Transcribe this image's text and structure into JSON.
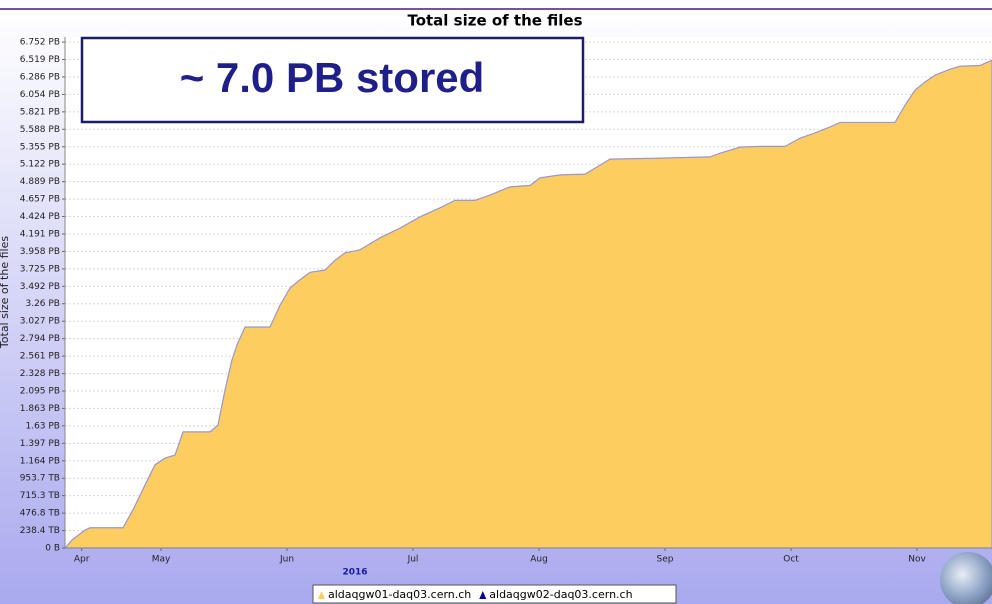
{
  "chart_data": {
    "type": "area",
    "title": "Total size of the files",
    "y_label": "Total size of the files",
    "x_label": "2016",
    "annotation": "~ 7.0 PB stored",
    "x": [
      4.738,
      4.794,
      4.897,
      4.937,
      5.198,
      5.278,
      5.373,
      5.452,
      5.532,
      5.611,
      5.675,
      5.889,
      5.952,
      6.008,
      6.063,
      6.103,
      6.167,
      6.365,
      6.444,
      6.524,
      6.603,
      6.683,
      6.802,
      6.881,
      6.96,
      7.079,
      7.238,
      7.397,
      7.556,
      7.714,
      7.833,
      7.992,
      8.111,
      8.27,
      8.429,
      8.508,
      8.667,
      8.865,
      8.984,
      9.063,
      9.381,
      9.857,
      9.937,
      10.095,
      10.254,
      10.452,
      10.571,
      10.69,
      10.81,
      10.889,
      11.048,
      11.325,
      11.405,
      11.484,
      11.563,
      11.643,
      11.762,
      11.841,
      12.0,
      12.095
    ],
    "series": [
      {
        "name": "aldaqgw01-daq03.cern.ch",
        "color": "#fecd5f",
        "line_color": "#9a96d2",
        "values": [
          0,
          0.107,
          0.24,
          0.27,
          0.27,
          0.51,
          0.84,
          1.11,
          1.2,
          1.24,
          1.55,
          1.55,
          1.64,
          2.11,
          2.51,
          2.71,
          2.95,
          2.95,
          3.24,
          3.47,
          3.58,
          3.68,
          3.71,
          3.84,
          3.94,
          3.98,
          4.14,
          4.27,
          4.42,
          4.54,
          4.64,
          4.64,
          4.71,
          4.82,
          4.84,
          4.94,
          4.98,
          4.99,
          5.11,
          5.19,
          5.2,
          5.22,
          5.27,
          5.35,
          5.36,
          5.36,
          5.47,
          5.54,
          5.62,
          5.68,
          5.68,
          5.68,
          5.91,
          6.11,
          6.22,
          6.31,
          6.39,
          6.43,
          6.44,
          6.51
        ]
      },
      {
        "name": "aldaqgw02-daq03.cern.ch",
        "color": "#00008b",
        "line_color": "#00008b",
        "values": [
          null,
          null,
          null,
          null,
          null,
          null,
          null,
          null,
          null,
          null,
          null,
          null,
          null,
          null,
          null,
          null,
          null,
          null,
          null,
          null,
          null,
          null,
          null,
          null,
          null,
          null,
          null,
          null,
          null,
          null,
          null,
          null,
          null,
          null,
          null,
          null,
          null,
          null,
          null,
          null,
          null,
          null,
          null,
          null,
          null,
          null,
          null,
          null,
          null,
          null,
          null,
          null,
          null,
          null,
          null,
          null,
          null,
          null,
          null,
          null
        ]
      }
    ],
    "xlim": [
      4.738,
      12.095
    ],
    "xticks": [
      {
        "value": 4.87,
        "label": "Apr"
      },
      {
        "value": 5.5,
        "label": "May"
      },
      {
        "value": 6.5,
        "label": "Jun"
      },
      {
        "value": 7.5,
        "label": "Jul"
      },
      {
        "value": 8.5,
        "label": "Aug"
      },
      {
        "value": 9.5,
        "label": "Sep"
      },
      {
        "value": 10.5,
        "label": "Oct"
      },
      {
        "value": 11.5,
        "label": "Nov"
      }
    ],
    "ylim": [
      0,
      6.82
    ],
    "yticks": [
      {
        "value": 0,
        "label": "0 B"
      },
      {
        "value": 0.2328,
        "label": "238.4 TB"
      },
      {
        "value": 0.4657,
        "label": "476.8 TB"
      },
      {
        "value": 0.6985,
        "label": "715.3 TB"
      },
      {
        "value": 0.9313,
        "label": "953.7 TB"
      },
      {
        "value": 1.164,
        "label": "1.164 PB"
      },
      {
        "value": 1.397,
        "label": "1.397 PB"
      },
      {
        "value": 1.63,
        "label": "1.63 PB"
      },
      {
        "value": 1.863,
        "label": "1.863 PB"
      },
      {
        "value": 2.095,
        "label": "2.095 PB"
      },
      {
        "value": 2.328,
        "label": "2.328 PB"
      },
      {
        "value": 2.561,
        "label": "2.561 PB"
      },
      {
        "value": 2.794,
        "label": "2.794 PB"
      },
      {
        "value": 3.027,
        "label": "3.027 PB"
      },
      {
        "value": 3.26,
        "label": "3.26 PB"
      },
      {
        "value": 3.492,
        "label": "3.492 PB"
      },
      {
        "value": 3.725,
        "label": "3.725 PB"
      },
      {
        "value": 3.958,
        "label": "3.958 PB"
      },
      {
        "value": 4.191,
        "label": "4.191 PB"
      },
      {
        "value": 4.424,
        "label": "4.424 PB"
      },
      {
        "value": 4.657,
        "label": "4.657 PB"
      },
      {
        "value": 4.889,
        "label": "4.889 PB"
      },
      {
        "value": 5.122,
        "label": "5.122 PB"
      },
      {
        "value": 5.355,
        "label": "5.355 PB"
      },
      {
        "value": 5.588,
        "label": "5.588 PB"
      },
      {
        "value": 5.821,
        "label": "5.821 PB"
      },
      {
        "value": 6.054,
        "label": "6.054 PB"
      },
      {
        "value": 6.286,
        "label": "6.286 PB"
      },
      {
        "value": 6.519,
        "label": "6.519 PB"
      },
      {
        "value": 6.752,
        "label": "6.752 PB"
      }
    ],
    "grid": true
  }
}
